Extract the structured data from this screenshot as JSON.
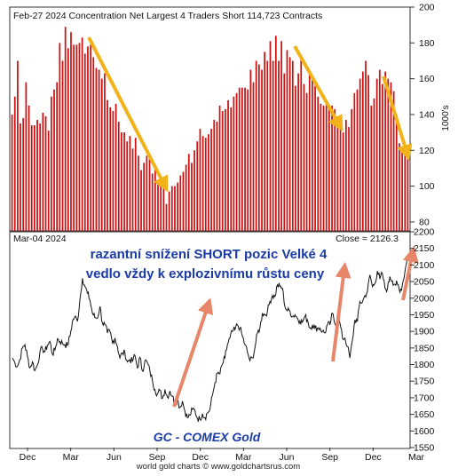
{
  "top_panel": {
    "header": "Feb-27  2024   Concentration Net Largest 4 Traders Short 114,723 Contracts",
    "y_unit": "1000's"
  },
  "bottom_panel": {
    "date_label": "Mar-04  2024",
    "close_label": "Close = 2126.3",
    "annotation_line1": "razantní snížení SHORT pozic Velké 4",
    "annotation_line2": "vedlo vždy k explozivnímu růstu ceny",
    "instrument_label": "GC - COMEX Gold"
  },
  "x_axis_labels": [
    "Dec",
    "Mar",
    "Jun",
    "Sep",
    "Dec",
    "Mar",
    "Jun",
    "Sep",
    "Dec",
    "Mar"
  ],
  "footer": "world gold charts © www.goldchartsrus.com",
  "colors": {
    "bars": "#cc1111",
    "price_line": "#111111",
    "trend_arrow": "#f2b21a",
    "price_arrow": "#e8866a",
    "instrument_label": "#1a3aa8"
  },
  "chart_data": [
    {
      "type": "bar",
      "title": "Concentration Net Largest 4 Traders Short 114,723 Contracts",
      "ylabel": "1000's",
      "ylim": [
        75,
        200
      ],
      "y_ticks": [
        80,
        100,
        120,
        140,
        160,
        180,
        200
      ],
      "grid": false,
      "values": [
        140,
        150,
        170,
        135,
        138,
        158,
        145,
        134,
        134,
        137,
        135,
        141,
        139,
        131,
        150,
        154,
        158,
        180,
        170,
        189,
        177,
        186,
        179,
        179,
        180,
        183,
        174,
        178,
        179,
        172,
        166,
        165,
        160,
        163,
        148,
        144,
        142,
        146,
        136,
        130,
        130,
        125,
        128,
        121,
        127,
        117,
        109,
        113,
        117,
        116,
        107,
        109,
        102,
        100,
        101,
        90,
        97,
        100,
        100,
        102,
        106,
        108,
        112,
        118,
        113,
        120,
        125,
        132,
        128,
        127,
        129,
        132,
        137,
        136,
        145,
        142,
        143,
        148,
        144,
        150,
        152,
        155,
        155,
        155,
        154,
        165,
        158,
        170,
        168,
        165,
        175,
        170,
        181,
        170,
        184,
        170,
        181,
        163,
        176,
        172,
        170,
        156,
        163,
        172,
        157,
        152,
        163,
        160,
        156,
        150,
        146,
        145,
        148,
        144,
        145,
        143,
        139,
        134,
        130,
        137,
        133,
        143,
        152,
        154,
        160,
        164,
        170,
        162,
        145,
        149,
        160,
        165,
        157,
        164,
        160,
        158,
        153,
        140,
        124,
        122,
        121,
        115
      ]
    },
    {
      "type": "line",
      "title": "GC - COMEX Gold",
      "ylim": [
        1550,
        2200
      ],
      "y_ticks": [
        1550,
        1600,
        1650,
        1700,
        1750,
        1800,
        1850,
        1900,
        1950,
        2000,
        2050,
        2100,
        2150,
        2200
      ],
      "grid": false,
      "series": [
        {
          "name": "GC - COMEX Gold",
          "last_close": 2126.3,
          "values": [
            1820,
            1805,
            1795,
            1815,
            1850,
            1860,
            1825,
            1790,
            1808,
            1782,
            1799,
            1838,
            1848,
            1839,
            1858,
            1870,
            1831,
            1844,
            1878,
            1869,
            1865,
            1860,
            1858,
            1885,
            1930,
            1945,
            1930,
            1995,
            2060,
            2035,
            2015,
            1995,
            1955,
            1942,
            1940,
            1975,
            1925,
            1920,
            1895,
            1900,
            1865,
            1880,
            1855,
            1820,
            1835,
            1835,
            1808,
            1815,
            1810,
            1828,
            1790,
            1822,
            1780,
            1812,
            1805,
            1780,
            1752,
            1725,
            1712,
            1722,
            1698,
            1725,
            1702,
            1720,
            1705,
            1680,
            1695,
            1670,
            1690,
            1660,
            1640,
            1647,
            1665,
            1662,
            1638,
            1636,
            1652,
            1640,
            1654,
            1665,
            1707,
            1745,
            1774,
            1772,
            1801,
            1820,
            1860,
            1880,
            1900,
            1905,
            1920,
            1910,
            1885,
            1860,
            1838,
            1812,
            1820,
            1850,
            1895,
            1910,
            1955,
            1950,
            1960,
            1990,
            2008,
            2005,
            2040,
            2035,
            2030,
            1975,
            1962,
            1962,
            1945,
            1950,
            1940,
            1932,
            1928,
            1945,
            1935,
            1910,
            1920,
            1910,
            1910,
            1910,
            1900,
            1895,
            1920,
            1920,
            1955,
            1923,
            1935,
            1925,
            1880,
            1880,
            1855,
            1820,
            1873,
            1935,
            1930,
            1990,
            1988,
            2008,
            2020,
            2070,
            2035,
            2045,
            2082,
            2058,
            2074,
            2030,
            2028,
            2065,
            2052,
            2042,
            2042,
            2018,
            2042,
            2080,
            2126
          ]
        }
      ]
    }
  ]
}
